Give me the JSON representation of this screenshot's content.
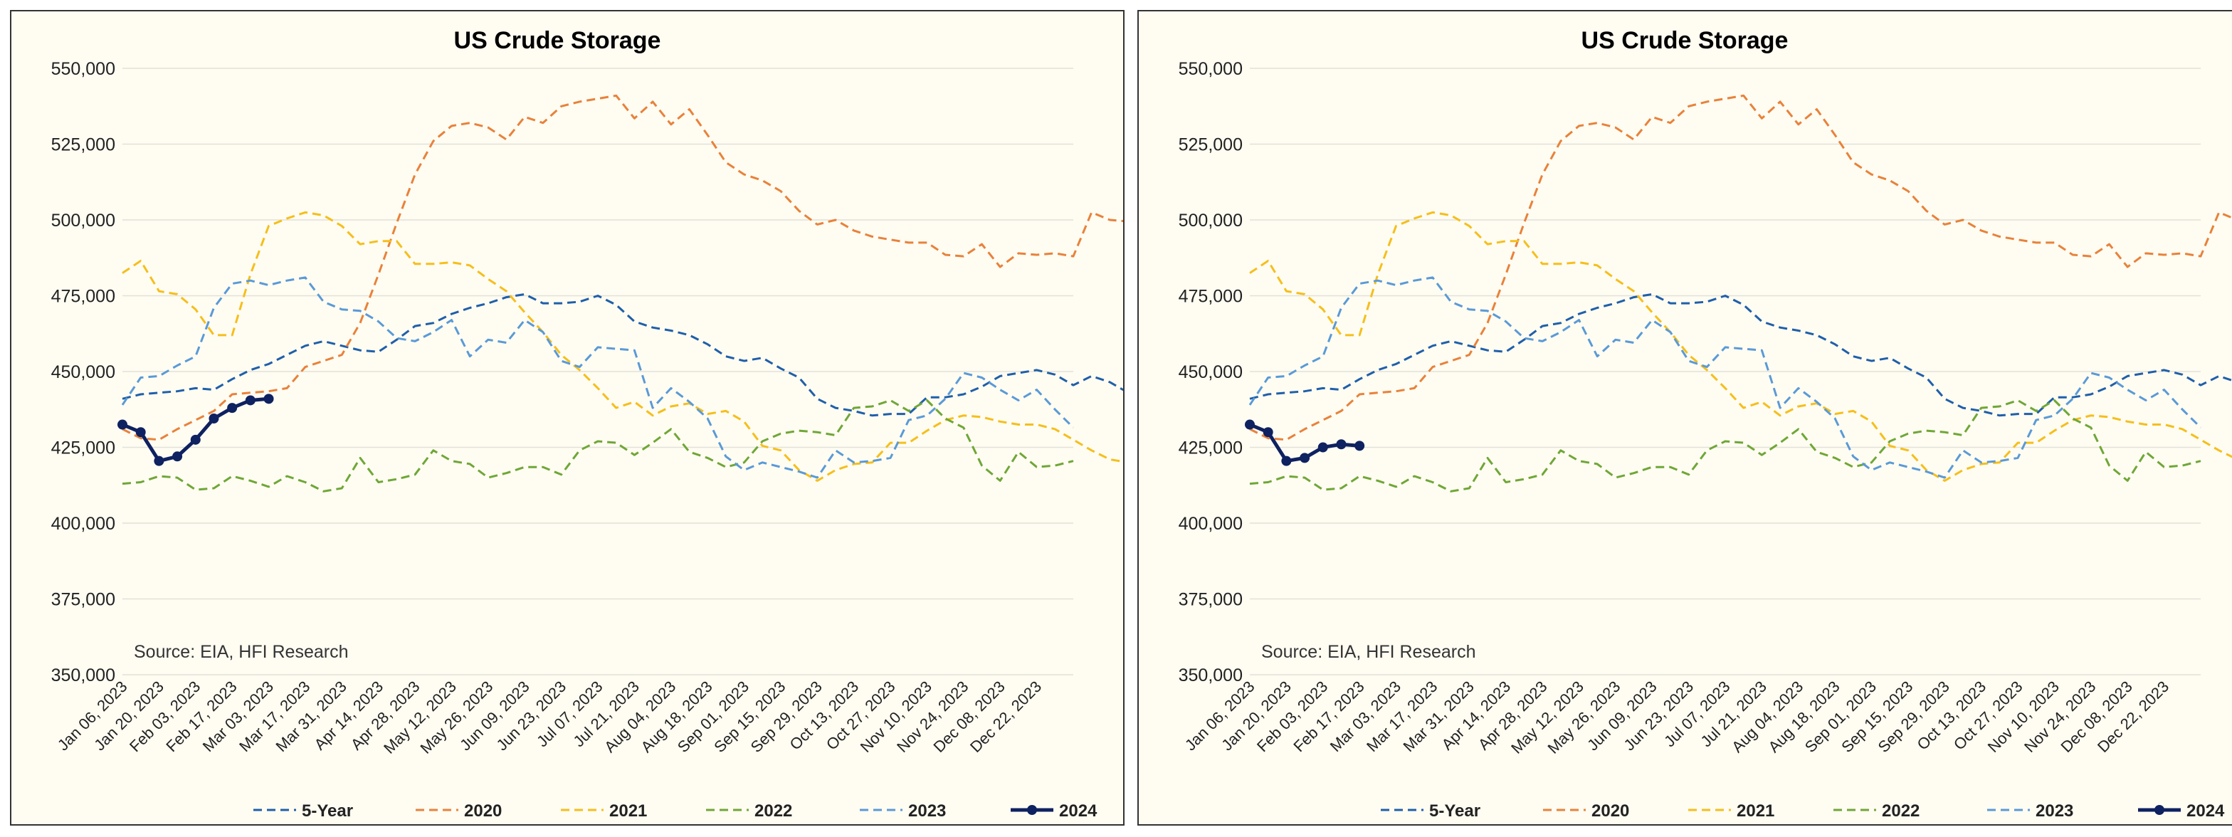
{
  "colors": {
    "5-Year": "#1f5fa9",
    "2020": "#e8823a",
    "2021": "#f5bf1b",
    "2022": "#6fa736",
    "2023": "#5a9ad6",
    "2024": "#0e2160",
    "gridline": "#e2e2d8",
    "panel_background": "#fffcf2"
  },
  "chart_data": [
    {
      "type": "line",
      "title": "US Crude Storage",
      "xlabel": "",
      "ylabel": "",
      "ylim": [
        350000,
        550000
      ],
      "y_ticks": [
        "350,000",
        "375,000",
        "400,000",
        "425,000",
        "450,000",
        "475,000",
        "500,000",
        "525,000",
        "550,000"
      ],
      "x_tick_labels": [
        "Jan 06, 2023",
        "Jan 20, 2023",
        "Feb 03, 2023",
        "Feb 17, 2023",
        "Mar 03, 2023",
        "Mar 17, 2023",
        "Mar 31, 2023",
        "Apr 14, 2023",
        "Apr 28, 2023",
        "May 12, 2023",
        "May 26, 2023",
        "Jun 09, 2023",
        "Jun 23, 2023",
        "Jul 07, 2023",
        "Jul 21, 2023",
        "Aug 04, 2023",
        "Aug 18, 2023",
        "Sep 01, 2023",
        "Sep 15, 2023",
        "Sep 29, 2023",
        "Oct 13, 2023",
        "Oct 27, 2023",
        "Nov 10, 2023",
        "Nov 24, 2023",
        "Dec 08, 2023",
        "Dec 22, 2023"
      ],
      "grid": "horizontal",
      "legend": "bottom",
      "annotation": "Source: EIA, HFI Research",
      "series": [
        {
          "name": "5-Year",
          "style": "dashed",
          "values": [
            441000,
            442500,
            443000,
            443500,
            444500,
            444000,
            447500,
            450500,
            452500,
            455500,
            458500,
            460000,
            458500,
            457000,
            456500,
            460500,
            465000,
            466000,
            469000,
            471000,
            472500,
            474500,
            475500,
            472500,
            472500,
            473000,
            475000,
            472000,
            466500,
            464500,
            463500,
            462000,
            459000,
            455000,
            453500,
            454500,
            451000,
            448000,
            441000,
            438000,
            437000,
            435500,
            436000,
            436000,
            441500,
            441500,
            442500,
            445000,
            448500,
            449500,
            450500,
            449000,
            445500,
            448500,
            446500,
            443000,
            438500
          ]
        },
        {
          "name": "2020",
          "style": "dashed",
          "values": [
            431000,
            428000,
            427500,
            431000,
            434000,
            437000,
            442500,
            443000,
            443500,
            444500,
            451500,
            453500,
            455500,
            466000,
            482000,
            499000,
            515000,
            526000,
            531000,
            532000,
            530500,
            526500,
            534000,
            532000,
            537500,
            539000,
            540000,
            541000,
            533500,
            539000,
            531500,
            536500,
            528000,
            519000,
            515000,
            513000,
            509500,
            503000,
            498500,
            500000,
            496500,
            494500,
            493500,
            492500,
            492500,
            488500,
            488000,
            492000,
            484500,
            489000,
            488500,
            489000,
            488000,
            502500,
            500000,
            499500,
            493000
          ]
        },
        {
          "name": "2021",
          "style": "dashed",
          "values": [
            482500,
            486500,
            476500,
            475500,
            470500,
            462000,
            462000,
            482000,
            498000,
            500500,
            502500,
            501500,
            498000,
            492000,
            493000,
            493000,
            485500,
            485500,
            486000,
            485000,
            480500,
            476500,
            469500,
            463000,
            455500,
            450500,
            444500,
            438000,
            440000,
            435500,
            438500,
            439500,
            436000,
            437000,
            433500,
            425500,
            424000,
            417500,
            414000,
            417500,
            419500,
            420000,
            426500,
            426500,
            430500,
            434000,
            435500,
            435000,
            433500,
            432500,
            432500,
            431000,
            427500,
            424000,
            421000,
            420000,
            419000
          ]
        },
        {
          "name": "2022",
          "style": "dashed",
          "values": [
            413000,
            413500,
            415500,
            415000,
            411000,
            411500,
            415500,
            414000,
            412000,
            415500,
            413500,
            410500,
            411500,
            421500,
            413500,
            414500,
            416000,
            424000,
            420500,
            419500,
            415000,
            416500,
            418500,
            418500,
            416000,
            424000,
            427000,
            426500,
            422500,
            426500,
            431000,
            423500,
            421500,
            418500,
            420000,
            427000,
            429500,
            430500,
            430000,
            429000,
            438000,
            438500,
            440500,
            437000,
            440500,
            434500,
            431500,
            419000,
            414000,
            423500,
            418500,
            419000,
            420500
          ]
        },
        {
          "name": "2023",
          "style": "dashed",
          "values": [
            439000,
            448000,
            448500,
            452000,
            455000,
            471000,
            479000,
            480000,
            478500,
            480000,
            481000,
            473000,
            470500,
            470000,
            466500,
            461000,
            460000,
            463000,
            467000,
            455000,
            460500,
            459500,
            467000,
            463000,
            453500,
            451500,
            458000,
            457500,
            457000,
            438000,
            444500,
            440000,
            434500,
            422000,
            417500,
            420000,
            418500,
            417000,
            415000,
            424000,
            420000,
            420500,
            421500,
            434000,
            435500,
            441000,
            449500,
            448000,
            444000,
            440500,
            444000,
            437500,
            431500
          ]
        },
        {
          "name": "2024",
          "style": "solid-markers",
          "values": [
            432500,
            430000,
            420500,
            421500,
            425000,
            426000,
            425500
          ]
        }
      ]
    },
    {
      "type": "line",
      "title": "US Crude Storage",
      "note": "right panel is identical except for the 2024 series"
    }
  ],
  "left_chart_2024": [
    432500,
    430000,
    420500,
    422000,
    427500,
    434500,
    438000,
    440500,
    441000
  ],
  "footnote": "Source: EIA, HFI Research"
}
